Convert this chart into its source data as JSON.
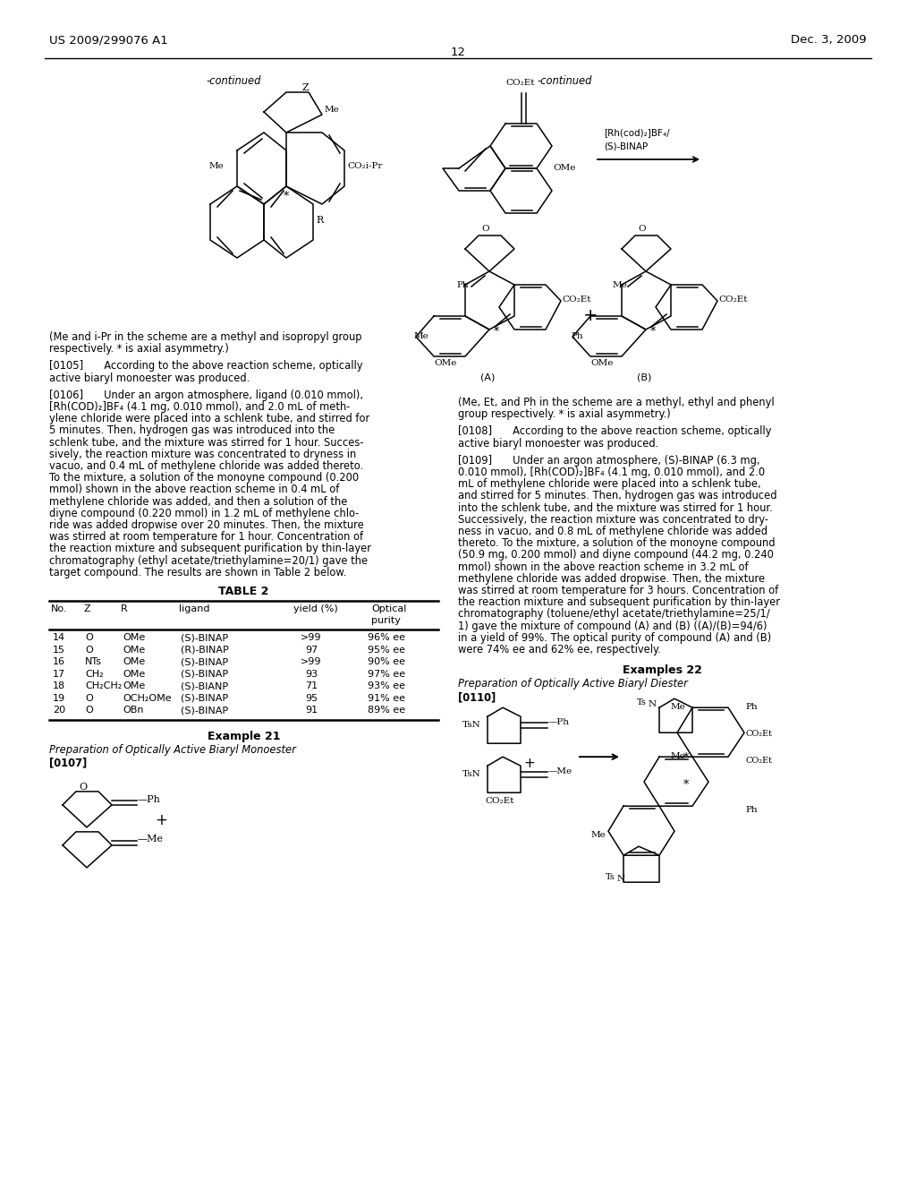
{
  "bg": "#ffffff",
  "header_left": "US 2009/299076 A1",
  "header_right": "Dec. 3, 2009",
  "page_num": "12",
  "left_continued": "-continued",
  "right_continued": "-continued",
  "left_note": "(Me and i-Pr in the scheme are a methyl and isopropyl group\nrespectively. * is axial asymmetry.)",
  "right_note": "(Me, Et, and Ph in the scheme are a methyl, ethyl and phenyl\ngroup respectively. * is axial asymmetry.)",
  "p0105_lines": [
    "[0105]  According to the above reaction scheme, optically",
    "active biaryl monoester was produced."
  ],
  "p0106_lines": [
    "[0106]  Under an argon atmosphere, ligand (0.010 mmol),",
    "[Rh(COD)₂]BF₄ (4.1 mg, 0.010 mmol), and 2.0 mL of meth-",
    "ylene chloride were placed into a schlenk tube, and stirred for",
    "5 minutes. Then, hydrogen gas was introduced into the",
    "schlenk tube, and the mixture was stirred for 1 hour. Succes-",
    "sively, the reaction mixture was concentrated to dryness in",
    "vacuo, and 0.4 mL of methylene chloride was added thereto.",
    "To the mixture, a solution of the monoyne compound (0.200",
    "mmol) shown in the above reaction scheme in 0.4 mL of",
    "methylene chloride was added, and then a solution of the",
    "diyne compound (0.220 mmol) in 1.2 mL of methylene chlo-",
    "ride was added dropwise over 20 minutes. Then, the mixture",
    "was stirred at room temperature for 1 hour. Concentration of",
    "the reaction mixture and subsequent purification by thin-layer",
    "chromatography (ethyl acetate/triethylamine=20/1) gave the",
    "target compound. The results are shown in Table 2 below."
  ],
  "table2_title": "TABLE 2",
  "table2_rows": [
    [
      "14",
      "O",
      "OMe",
      "(S)-BINAP",
      ">99",
      "96% ee"
    ],
    [
      "15",
      "O",
      "OMe",
      "(R)-BINAP",
      "97",
      "95% ee"
    ],
    [
      "16",
      "NTs",
      "OMe",
      "(S)-BINAP",
      ">99",
      "90% ee"
    ],
    [
      "17",
      "CH₂",
      "OMe",
      "(S)-BINAP",
      "93",
      "97% ee"
    ],
    [
      "18",
      "CH₂CH₂",
      "OMe",
      "(S)-BIANP",
      "71",
      "93% ee"
    ],
    [
      "19",
      "O",
      "OCH₂OMe",
      "(S)-BINAP",
      "95",
      "91% ee"
    ],
    [
      "20",
      "O",
      "OBn",
      "(S)-BINAP",
      "91",
      "89% ee"
    ]
  ],
  "ex21_head": "Example 21",
  "ex21_sub": "Preparation of Optically Active Biaryl Monoester",
  "ex21_para": "[0107]",
  "p0108_lines": [
    "[0108]  According to the above reaction scheme, optically",
    "active biaryl monoester was produced."
  ],
  "p0109_lines": [
    "[0109]  Under an argon atmosphere, (S)-BINAP (6.3 mg,",
    "0.010 mmol), [Rh(COD)₂]BF₄ (4.1 mg, 0.010 mmol), and 2.0",
    "mL of methylene chloride were placed into a schlenk tube,",
    "and stirred for 5 minutes. Then, hydrogen gas was introduced",
    "into the schlenk tube, and the mixture was stirred for 1 hour.",
    "Successively, the reaction mixture was concentrated to dry-",
    "ness in vacuo, and 0.8 mL of methylene chloride was added",
    "thereto. To the mixture, a solution of the monoyne compound",
    "(50.9 mg, 0.200 mmol) and diyne compound (44.2 mg, 0.240",
    "mmol) shown in the above reaction scheme in 3.2 mL of",
    "methylene chloride was added dropwise. Then, the mixture",
    "was stirred at room temperature for 3 hours. Concentration of",
    "the reaction mixture and subsequent purification by thin-layer",
    "chromatography (toluene/ethyl acetate/triethylamine=25/1/",
    "1) gave the mixture of compound (A) and (B) ((A)/(B)=94/6)",
    "in a yield of 99%. The optical purity of compound (A) and (B)",
    "were 74% ee and 62% ee, respectively."
  ],
  "ex22_head": "Examples 22",
  "ex22_sub": "Preparation of Optically Active Biaryl Diester",
  "ex22_para": "[0110]"
}
